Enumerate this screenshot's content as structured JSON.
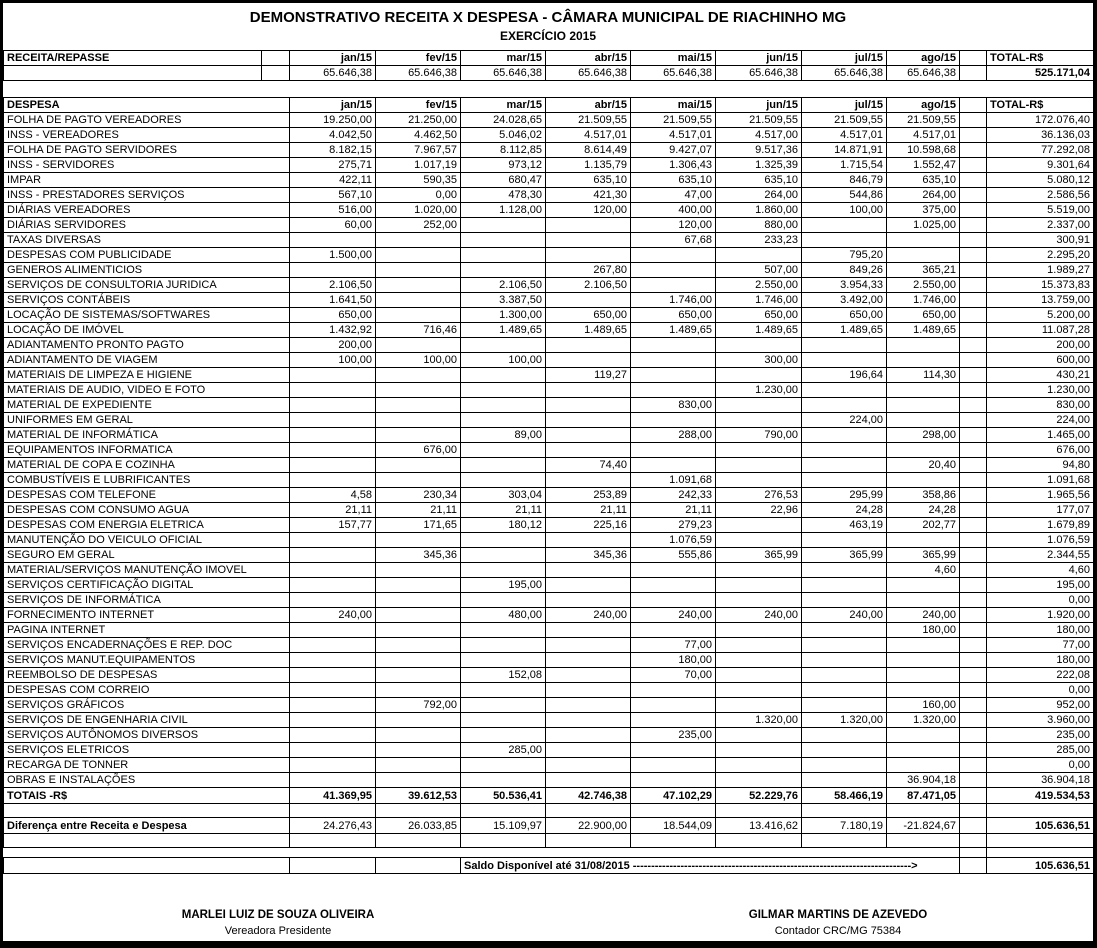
{
  "title": "DEMONSTRATIVO  RECEITA X DESPESA - CÂMARA MUNICIPAL DE RIACHINHO MG",
  "subtitle": "EXERCÍCIO 2015",
  "months": [
    "jan/15",
    "fev/15",
    "mar/15",
    "abr/15",
    "mai/15",
    "jun/15",
    "jul/15",
    "ago/15"
  ],
  "total_header": "TOTAL-R$",
  "receita": {
    "label": "RECEITA/REPASSE",
    "values": [
      "65.646,38",
      "65.646,38",
      "65.646,38",
      "65.646,38",
      "65.646,38",
      "65.646,38",
      "65.646,38",
      "65.646,38"
    ],
    "total": "525.171,04"
  },
  "despesa": {
    "label": "DESPESA",
    "rows": [
      {
        "label": "FOLHA DE PAGTO VEREADORES",
        "values": [
          "19.250,00",
          "21.250,00",
          "24.028,65",
          "21.509,55",
          "21.509,55",
          "21.509,55",
          "21.509,55",
          "21.509,55"
        ],
        "total": "172.076,40"
      },
      {
        "label": "INSS - VEREADORES",
        "values": [
          "4.042,50",
          "4.462,50",
          "5.046,02",
          "4.517,01",
          "4.517,01",
          "4.517,00",
          "4.517,01",
          "4.517,01"
        ],
        "total": "36.136,03"
      },
      {
        "label": "FOLHA DE PAGTO SERVIDORES",
        "values": [
          "8.182,15",
          "7.967,57",
          "8.112,85",
          "8.614,49",
          "9.427,07",
          "9.517,36",
          "14.871,91",
          "10.598,68"
        ],
        "total": "77.292,08"
      },
      {
        "label": "INSS - SERVIDORES",
        "values": [
          "275,71",
          "1.017,19",
          "973,12",
          "1.135,79",
          "1.306,43",
          "1.325,39",
          "1.715,54",
          "1.552,47"
        ],
        "total": "9.301,64"
      },
      {
        "label": "IMPAR",
        "values": [
          "422,11",
          "590,35",
          "680,47",
          "635,10",
          "635,10",
          "635,10",
          "846,79",
          "635,10"
        ],
        "total": "5.080,12"
      },
      {
        "label": "INSS - PRESTADORES SERVIÇOS",
        "values": [
          "567,10",
          "0,00",
          "478,30",
          "421,30",
          "47,00",
          "264,00",
          "544,86",
          "264,00"
        ],
        "total": "2.586,56"
      },
      {
        "label": "DIÁRIAS VEREADORES",
        "values": [
          "516,00",
          "1.020,00",
          "1.128,00",
          "120,00",
          "400,00",
          "1.860,00",
          "100,00",
          "375,00"
        ],
        "total": "5.519,00"
      },
      {
        "label": "DIÁRIAS SERVIDORES",
        "values": [
          "60,00",
          "252,00",
          "",
          "",
          "120,00",
          "880,00",
          "",
          "1.025,00"
        ],
        "total": "2.337,00"
      },
      {
        "label": "TAXAS DIVERSAS",
        "values": [
          "",
          "",
          "",
          "",
          "67,68",
          "233,23",
          "",
          ""
        ],
        "total": "300,91"
      },
      {
        "label": "DESPESAS COM PUBLICIDADE",
        "values": [
          "1.500,00",
          "",
          "",
          "",
          "",
          "",
          "795,20",
          ""
        ],
        "total": "2.295,20"
      },
      {
        "label": "GENEROS ALIMENTICIOS",
        "values": [
          "",
          "",
          "",
          "267,80",
          "",
          "507,00",
          "849,26",
          "365,21"
        ],
        "total": "1.989,27"
      },
      {
        "label": "SERVIÇOS DE CONSULTORIA JURIDICA",
        "values": [
          "2.106,50",
          "",
          "2.106,50",
          "2.106,50",
          "",
          "2.550,00",
          "3.954,33",
          "2.550,00"
        ],
        "total": "15.373,83"
      },
      {
        "label": "SERVIÇOS CONTÁBEIS",
        "values": [
          "1.641,50",
          "",
          "3.387,50",
          "",
          "1.746,00",
          "1.746,00",
          "3.492,00",
          "1.746,00"
        ],
        "total": "13.759,00"
      },
      {
        "label": "LOCAÇÃO DE SISTEMAS/SOFTWARES",
        "values": [
          "650,00",
          "",
          "1.300,00",
          "650,00",
          "650,00",
          "650,00",
          "650,00",
          "650,00"
        ],
        "total": "5.200,00"
      },
      {
        "label": "LOCAÇÃO DE IMÓVEL",
        "values": [
          "1.432,92",
          "716,46",
          "1.489,65",
          "1.489,65",
          "1.489,65",
          "1.489,65",
          "1.489,65",
          "1.489,65"
        ],
        "total": "11.087,28"
      },
      {
        "label": "ADIANTAMENTO PRONTO PAGTO",
        "values": [
          "200,00",
          "",
          "",
          "",
          "",
          "",
          "",
          ""
        ],
        "total": "200,00"
      },
      {
        "label": "ADIANTAMENTO DE VIAGEM",
        "values": [
          "100,00",
          "100,00",
          "100,00",
          "",
          "",
          "300,00",
          "",
          ""
        ],
        "total": "600,00"
      },
      {
        "label": "MATERIAIS DE LIMPEZA E HIGIENE",
        "values": [
          "",
          "",
          "",
          "119,27",
          "",
          "",
          "196,64",
          "114,30"
        ],
        "total": "430,21"
      },
      {
        "label": "MATERIAIS DE AUDIO, VIDEO E FOTO",
        "values": [
          "",
          "",
          "",
          "",
          "",
          "1.230,00",
          "",
          ""
        ],
        "total": "1.230,00"
      },
      {
        "label": "MATERIAL DE EXPEDIENTE",
        "values": [
          "",
          "",
          "",
          "",
          "830,00",
          "",
          "",
          ""
        ],
        "total": "830,00"
      },
      {
        "label": "UNIFORMES EM GERAL",
        "values": [
          "",
          "",
          "",
          "",
          "",
          "",
          "224,00",
          ""
        ],
        "total": "224,00"
      },
      {
        "label": "MATERIAL DE INFORMÁTICA",
        "values": [
          "",
          "",
          "89,00",
          "",
          "288,00",
          "790,00",
          "",
          "298,00"
        ],
        "total": "1.465,00"
      },
      {
        "label": "EQUIPAMENTOS INFORMATICA",
        "values": [
          "",
          "676,00",
          "",
          "",
          "",
          "",
          "",
          ""
        ],
        "total": "676,00"
      },
      {
        "label": "MATERIAL DE COPA E COZINHA",
        "values": [
          "",
          "",
          "",
          "74,40",
          "",
          "",
          "",
          "20,40"
        ],
        "total": "94,80"
      },
      {
        "label": "COMBUSTÍVEIS E LUBRIFICANTES",
        "values": [
          "",
          "",
          "",
          "",
          "1.091,68",
          "",
          "",
          ""
        ],
        "total": "1.091,68"
      },
      {
        "label": "DESPESAS COM TELEFONE",
        "values": [
          "4,58",
          "230,34",
          "303,04",
          "253,89",
          "242,33",
          "276,53",
          "295,99",
          "358,86"
        ],
        "total": "1.965,56"
      },
      {
        "label": "DESPESAS COM CONSUMO AGUA",
        "values": [
          "21,11",
          "21,11",
          "21,11",
          "21,11",
          "21,11",
          "22,96",
          "24,28",
          "24,28"
        ],
        "total": "177,07"
      },
      {
        "label": "DESPESAS COM ENERGIA ELETRICA",
        "values": [
          "157,77",
          "171,65",
          "180,12",
          "225,16",
          "279,23",
          "",
          "463,19",
          "202,77"
        ],
        "total": "1.679,89"
      },
      {
        "label": "MANUTENÇÃO DO VEICULO OFICIAL",
        "values": [
          "",
          "",
          "",
          "",
          "1.076,59",
          "",
          "",
          ""
        ],
        "total": "1.076,59"
      },
      {
        "label": "SEGURO EM GERAL",
        "values": [
          "",
          "345,36",
          "",
          "345,36",
          "555,86",
          "365,99",
          "365,99",
          "365,99"
        ],
        "total": "2.344,55"
      },
      {
        "label": "MATERIAL/SERVIÇOS MANUTENÇÃO IMOVEL",
        "values": [
          "",
          "",
          "",
          "",
          "",
          "",
          "",
          "4,60"
        ],
        "total": "4,60"
      },
      {
        "label": "SERVIÇOS CERTIFICAÇÃO DIGITAL",
        "values": [
          "",
          "",
          "195,00",
          "",
          "",
          "",
          "",
          ""
        ],
        "total": "195,00"
      },
      {
        "label": "SERVIÇOS DE INFORMÁTICA",
        "values": [
          "",
          "",
          "",
          "",
          "",
          "",
          "",
          ""
        ],
        "total": "0,00"
      },
      {
        "label": "FORNECIMENTO INTERNET",
        "values": [
          "240,00",
          "",
          "480,00",
          "240,00",
          "240,00",
          "240,00",
          "240,00",
          "240,00"
        ],
        "total": "1.920,00"
      },
      {
        "label": "PAGINA INTERNET",
        "values": [
          "",
          "",
          "",
          "",
          "",
          "",
          "",
          "180,00"
        ],
        "total": "180,00"
      },
      {
        "label": "SERVIÇOS ENCADERNAÇÕES E REP. DOC",
        "values": [
          "",
          "",
          "",
          "",
          "77,00",
          "",
          "",
          ""
        ],
        "total": "77,00"
      },
      {
        "label": "SERVIÇOS MANUT.EQUIPAMENTOS",
        "values": [
          "",
          "",
          "",
          "",
          "180,00",
          "",
          "",
          ""
        ],
        "total": "180,00"
      },
      {
        "label": "REEMBOLSO DE DESPESAS",
        "values": [
          "",
          "",
          "152,08",
          "",
          "70,00",
          "",
          "",
          ""
        ],
        "total": "222,08"
      },
      {
        "label": "DESPESAS COM CORREIO",
        "values": [
          "",
          "",
          "",
          "",
          "",
          "",
          "",
          ""
        ],
        "total": "0,00"
      },
      {
        "label": "SERVIÇOS GRÁFICOS",
        "values": [
          "",
          "792,00",
          "",
          "",
          "",
          "",
          "",
          "160,00"
        ],
        "total": "952,00"
      },
      {
        "label": "SERVIÇOS DE ENGENHARIA CIVIL",
        "values": [
          "",
          "",
          "",
          "",
          "",
          "1.320,00",
          "1.320,00",
          "1.320,00"
        ],
        "total": "3.960,00"
      },
      {
        "label": "SERVIÇOS AUTÔNOMOS DIVERSOS",
        "values": [
          "",
          "",
          "",
          "",
          "235,00",
          "",
          "",
          ""
        ],
        "total": "235,00"
      },
      {
        "label": "SERVIÇOS ELETRICOS",
        "values": [
          "",
          "",
          "285,00",
          "",
          "",
          "",
          "",
          ""
        ],
        "total": "285,00"
      },
      {
        "label": "RECARGA DE TONNER",
        "values": [
          "",
          "",
          "",
          "",
          "",
          "",
          "",
          ""
        ],
        "total": "0,00"
      },
      {
        "label": "OBRAS E INSTALAÇÕES",
        "values": [
          "",
          "",
          "",
          "",
          "",
          "",
          "",
          "36.904,18"
        ],
        "total": "36.904,18"
      }
    ]
  },
  "totais": {
    "label": "TOTAIS -R$",
    "values": [
      "41.369,95",
      "39.612,53",
      "50.536,41",
      "42.746,38",
      "47.102,29",
      "52.229,76",
      "58.466,19",
      "87.471,05"
    ],
    "total": "419.534,53"
  },
  "diferenca": {
    "label": "Diferença entre Receita e Despesa",
    "values": [
      "24.276,43",
      "26.033,85",
      "15.109,97",
      "22.900,00",
      "18.544,09",
      "13.416,62",
      "7.180,19",
      "-21.824,67"
    ],
    "total": "105.636,51"
  },
  "saldo": {
    "label": "Saldo Disponível até 31/08/2015 ---------------------------------------------------------------------------->",
    "total": "105.636,51"
  },
  "signatures": [
    {
      "name": "MARLEI LUIZ DE SOUZA OLIVEIRA",
      "role": "Vereadora Presidente"
    },
    {
      "name": "GILMAR MARTINS DE AZEVEDO",
      "role": "Contador CRC/MG 75384"
    }
  ]
}
